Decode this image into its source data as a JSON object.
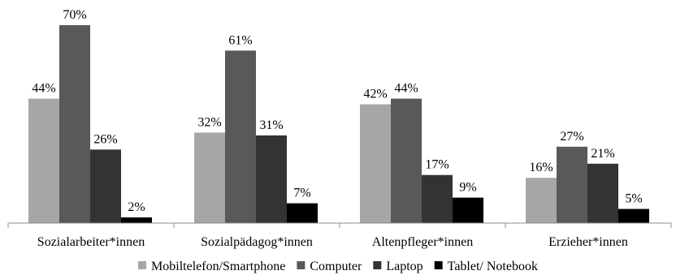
{
  "chart_data": {
    "type": "bar",
    "categories": [
      "Sozialarbeiter*innen",
      "Sozialpädagog*innen",
      "Altenpfleger*innen",
      "Erzieher*innen"
    ],
    "series": [
      {
        "name": "Mobiltelefon/Smartphone",
        "values": [
          44,
          32,
          42,
          16
        ],
        "labels": [
          "44%",
          "32%",
          "42%",
          "16%"
        ],
        "color": "#a6a6a6"
      },
      {
        "name": "Computer",
        "values": [
          70,
          61,
          44,
          27
        ],
        "labels": [
          "70%",
          "61%",
          "44%",
          "27%"
        ],
        "color": "#595959"
      },
      {
        "name": "Laptop",
        "values": [
          26,
          31,
          17,
          21
        ],
        "labels": [
          "26%",
          "31%",
          "17%",
          "21%"
        ],
        "color": "#333333"
      },
      {
        "name": "Tablet/ Notebook",
        "values": [
          2,
          7,
          9,
          5
        ],
        "labels": [
          "2%",
          "7%",
          "9%",
          "5%"
        ],
        "color": "#000000"
      }
    ],
    "ylim": [
      0,
      100
    ],
    "grid": false,
    "legend_position": "bottom"
  }
}
